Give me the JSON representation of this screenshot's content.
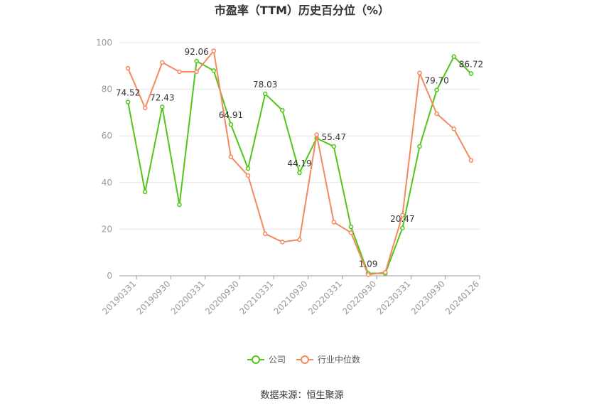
{
  "chart_data": {
    "type": "line",
    "title": "市盈率（TTM）历史百分位（%）",
    "source": "数据来源：恒生聚源",
    "ylim": [
      0,
      100
    ],
    "yticks": [
      0,
      20,
      40,
      60,
      80,
      100
    ],
    "grid": true,
    "legend_position": "bottom",
    "x": [
      "20190331",
      "20190630",
      "20190930",
      "20191231",
      "20200331",
      "20200630",
      "20200930",
      "20201231",
      "20210331",
      "20210630",
      "20210930",
      "20211231",
      "20220331",
      "20220630",
      "20220930",
      "20221231",
      "20230331",
      "20230630",
      "20230930",
      "20231231",
      "20240126"
    ],
    "x_tick_labels": [
      "20190331",
      "20190930",
      "20200331",
      "20200930",
      "20210331",
      "20210930",
      "20220331",
      "20220930",
      "20230331",
      "20230930",
      "20240126"
    ],
    "series": [
      {
        "name": "公司",
        "color": "#52c41a",
        "values": [
          74.52,
          36,
          72.43,
          30.5,
          92.06,
          88,
          64.91,
          46,
          78.03,
          71,
          44.19,
          59,
          55.47,
          21,
          1.09,
          1,
          20.47,
          55.5,
          79.7,
          94,
          86.72
        ],
        "labels": [
          "74.52",
          "",
          "72.43",
          "",
          "92.06",
          "",
          "64.91",
          "",
          "78.03",
          "",
          "44.19",
          "",
          "55.47",
          "",
          "1.09",
          "",
          "20.47",
          "",
          "79.70",
          "",
          "86.72"
        ]
      },
      {
        "name": "行业中位数",
        "color": "#f4895f",
        "values": [
          89,
          72,
          91.5,
          87.5,
          87.5,
          96.5,
          51,
          43,
          18,
          14.5,
          15.5,
          60.5,
          23,
          18.5,
          0.5,
          1.5,
          26,
          87,
          69.5,
          63,
          49.5
        ]
      }
    ]
  }
}
